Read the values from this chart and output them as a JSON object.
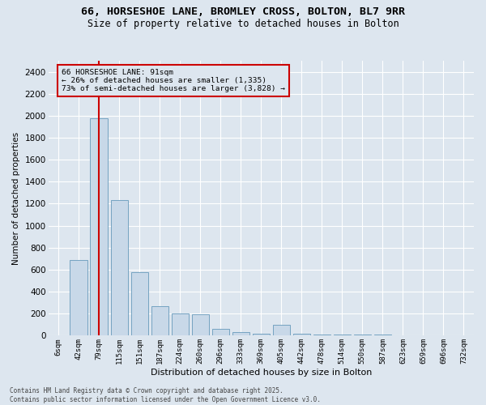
{
  "title_line1": "66, HORSESHOE LANE, BROMLEY CROSS, BOLTON, BL7 9RR",
  "title_line2": "Size of property relative to detached houses in Bolton",
  "xlabel": "Distribution of detached houses by size in Bolton",
  "ylabel": "Number of detached properties",
  "footnote": "Contains HM Land Registry data © Crown copyright and database right 2025.\nContains public sector information licensed under the Open Government Licence v3.0.",
  "categories": [
    "6sqm",
    "42sqm",
    "79sqm",
    "115sqm",
    "151sqm",
    "187sqm",
    "224sqm",
    "260sqm",
    "296sqm",
    "333sqm",
    "369sqm",
    "405sqm",
    "442sqm",
    "478sqm",
    "514sqm",
    "550sqm",
    "587sqm",
    "623sqm",
    "659sqm",
    "696sqm",
    "732sqm"
  ],
  "bar_heights": [
    5,
    685,
    1980,
    1230,
    575,
    270,
    200,
    195,
    65,
    30,
    20,
    100,
    15,
    12,
    12,
    12,
    10,
    5,
    2,
    2,
    2
  ],
  "bar_color": "#c8d8e8",
  "bar_edgecolor": "#6699bb",
  "property_bin_index": 2,
  "vline_color": "#cc0000",
  "annotation_text": "66 HORSESHOE LANE: 91sqm\n← 26% of detached houses are smaller (1,335)\n73% of semi-detached houses are larger (3,828) →",
  "annotation_box_color": "#cc0000",
  "ylim": [
    0,
    2500
  ],
  "yticks": [
    0,
    200,
    400,
    600,
    800,
    1000,
    1200,
    1400,
    1600,
    1800,
    2000,
    2200,
    2400
  ],
  "bg_color": "#dde6ef",
  "grid_color": "#ffffff",
  "title_fontsize": 9.5,
  "subtitle_fontsize": 8.5
}
